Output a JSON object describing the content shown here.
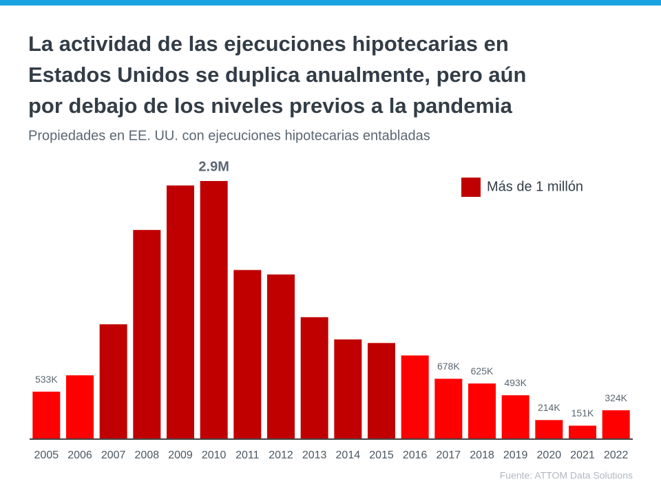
{
  "chart_data": {
    "type": "bar",
    "title": [
      "La actividad de las ejecuciones hipotecarias en",
      "Estados Unidos se duplica anualmente, pero aún",
      "por debajo de los niveles previos a la pandemia"
    ],
    "subtitle": "Propiedades en EE. UU. con ejecuciones hipotecarias entabladas",
    "categories": [
      "2005",
      "2006",
      "2007",
      "2008",
      "2009",
      "2010",
      "2011",
      "2012",
      "2013",
      "2014",
      "2015",
      "2016",
      "2017",
      "2018",
      "2019",
      "2020",
      "2021",
      "2022"
    ],
    "values": [
      533000,
      717000,
      1290000,
      2350000,
      2850000,
      2900000,
      1900000,
      1850000,
      1370000,
      1120000,
      1080000,
      940000,
      678000,
      625000,
      493000,
      214000,
      151000,
      324000
    ],
    "value_labels": [
      "533K",
      null,
      null,
      null,
      null,
      "2.9M",
      null,
      null,
      null,
      null,
      null,
      null,
      "678K",
      "625K",
      "493K",
      "214K",
      "151K",
      "324K"
    ],
    "colors": [
      "#ff0000",
      "#ff0000",
      "#c00000",
      "#c00000",
      "#c00000",
      "#c00000",
      "#c00000",
      "#c00000",
      "#c00000",
      "#c00000",
      "#c00000",
      "#ff0000",
      "#ff0000",
      "#ff0000",
      "#ff0000",
      "#ff0000",
      "#ff0000",
      "#ff0000"
    ],
    "legend": {
      "label": "Más de 1 millón",
      "color": "#c00000"
    },
    "source": "Fuente: ATTOM Data Solutions"
  }
}
